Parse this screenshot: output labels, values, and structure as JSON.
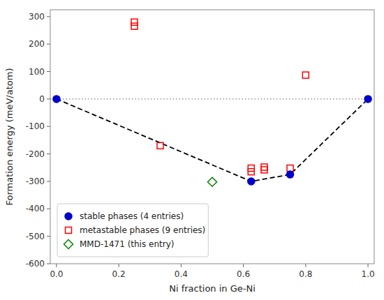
{
  "chart_data": {
    "type": "scatter",
    "xlabel": "Ni fraction in Ge-Ni",
    "ylabel": "Formation energy (meV/atom)",
    "xlim": [
      -0.02,
      1.02
    ],
    "ylim": [
      -600,
      325
    ],
    "xticks": [
      {
        "value": 0.0,
        "label": "0.0"
      },
      0.2,
      0.4,
      0.6,
      0.8,
      {
        "value": 1.0,
        "label": "1.0"
      }
    ],
    "yticks": [
      -600,
      -500,
      -400,
      -300,
      -200,
      -100,
      0,
      100,
      200,
      300
    ],
    "grid": false,
    "legend": "lower left",
    "series": [
      {
        "name": "stable phases (4 entries)",
        "type": "scatter",
        "marker": "circle",
        "color": "#0000cc",
        "x": [
          0.0,
          0.625,
          0.75,
          1.0
        ],
        "values": [
          0.0,
          -300.0,
          -275.0,
          0.0
        ]
      },
      {
        "name": "metastable phases (9 entries)",
        "type": "scatter",
        "marker": "square-open",
        "color": "red",
        "x": [
          0.25,
          0.25,
          0.333,
          0.625,
          0.625,
          0.667,
          0.667,
          0.75,
          0.8
        ],
        "values": [
          280.0,
          265.0,
          -170.0,
          -252.0,
          -265.0,
          -258.0,
          -248.0,
          -252.0,
          87.0
        ]
      },
      {
        "name": "MMD-1471 (this entry)",
        "type": "scatter",
        "marker": "diamond-open",
        "color": "green",
        "x": [
          0.5
        ],
        "values": [
          -302.0
        ]
      },
      {
        "type": "line",
        "line_style": "dashed",
        "color": "black",
        "x": [
          0.0,
          0.625,
          0.75,
          1.0
        ],
        "values": [
          0.0,
          -300.0,
          -275.0,
          0.0
        ]
      },
      {
        "type": "hline",
        "line_style": "dotted",
        "color": "gray",
        "values": [
          0
        ]
      }
    ]
  }
}
